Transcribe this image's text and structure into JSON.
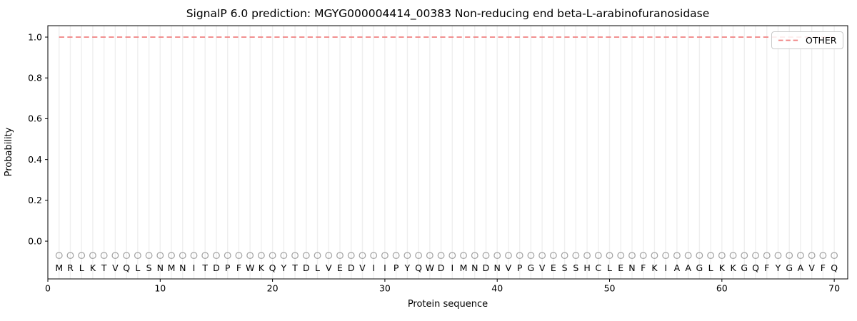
{
  "title": "SignalP 6.0 prediction: MGYG000004414_00383 Non-reducing end beta-L-arabinofuranosidase",
  "x_axis": {
    "label": "Protein sequence",
    "ticks": [
      "0",
      "10",
      "20",
      "30",
      "40",
      "50",
      "60",
      "70"
    ],
    "tick_values": [
      0,
      10,
      20,
      30,
      40,
      50,
      60,
      70
    ]
  },
  "y_axis": {
    "label": "Probability",
    "ticks": [
      "0.0",
      "0.2",
      "0.4",
      "0.6",
      "0.8",
      "1.0"
    ],
    "tick_values": [
      0,
      0.2,
      0.4,
      0.6,
      0.8,
      1.0
    ]
  },
  "legend": {
    "position": "upper-right",
    "items": [
      {
        "label": "OTHER",
        "color": "#f08080",
        "line_style": "dashed"
      }
    ]
  },
  "chart_data": {
    "type": "line",
    "title": "SignalP 6.0 prediction: MGYG000004414_00383 Non-reducing end beta-L-arabinofuranosidase",
    "xlabel": "Protein sequence",
    "ylabel": "Probability",
    "xlim": [
      0,
      71.2
    ],
    "ylim": [
      -0.185,
      1.056
    ],
    "grid": {
      "vertical_per_residue": true,
      "horizontal": false,
      "color": "#efefef"
    },
    "series": [
      {
        "name": "OTHER",
        "line_style": "dashed",
        "color": "#f08080",
        "x_start": 1,
        "x_end": 70,
        "y_constant": 1.0
      }
    ],
    "sequence": "MRLKTVQLSNMNITDPFWKQYTDLVEDVIIPYQWDIMNDNVPGVESSHCLENFKIAAGLKKGQFYGAVFQ",
    "sequence_start_position": 1,
    "residue_marker": {
      "shape": "open-circle",
      "y": -0.07,
      "color": "#a3a3a3"
    },
    "residue_letter_y": -0.13,
    "colors": {
      "spine": "#000000",
      "tick_text": "#000000",
      "letters": "#262626"
    }
  }
}
